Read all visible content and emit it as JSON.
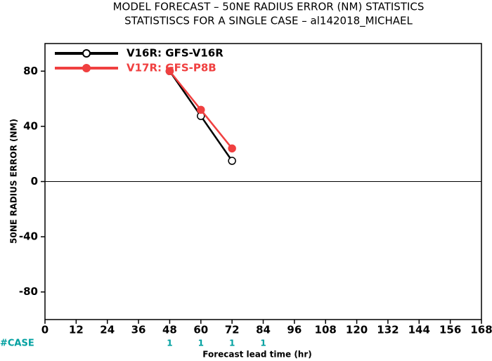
{
  "chart_data": {
    "type": "line",
    "title": "MODEL FORECAST – 50NE RADIUS ERROR (NM) STATISTICS",
    "subtitle": "STATISTISCS FOR A SINGLE CASE – al142018_MICHAEL",
    "x_label": "Forecast lead time (hr)",
    "y_label": "50NE RADIUS ERROR (NM)",
    "x": [
      48,
      60,
      72
    ],
    "series": [
      {
        "name": "V16R: GFS-V16R",
        "color": "#000000",
        "marker": "open",
        "values": [
          80,
          47.5,
          15
        ]
      },
      {
        "name": "V17R: GFS-P8B",
        "color": "#f04040",
        "marker": "filled",
        "values": [
          80,
          52,
          24
        ]
      }
    ],
    "xlim": [
      0,
      168
    ],
    "xticks": [
      0,
      12,
      24,
      36,
      48,
      60,
      72,
      84,
      96,
      108,
      120,
      132,
      144,
      156,
      168
    ],
    "ylim": [
      -100,
      100
    ],
    "yticks": [
      -80,
      -40,
      0,
      40,
      80
    ],
    "zero_line": true,
    "legend": "upper-left",
    "case_label": "#CASE",
    "case_color": "#00a0a0",
    "case_x": [
      48,
      60,
      72,
      84
    ],
    "case_counts": [
      1,
      1,
      1,
      1
    ]
  }
}
